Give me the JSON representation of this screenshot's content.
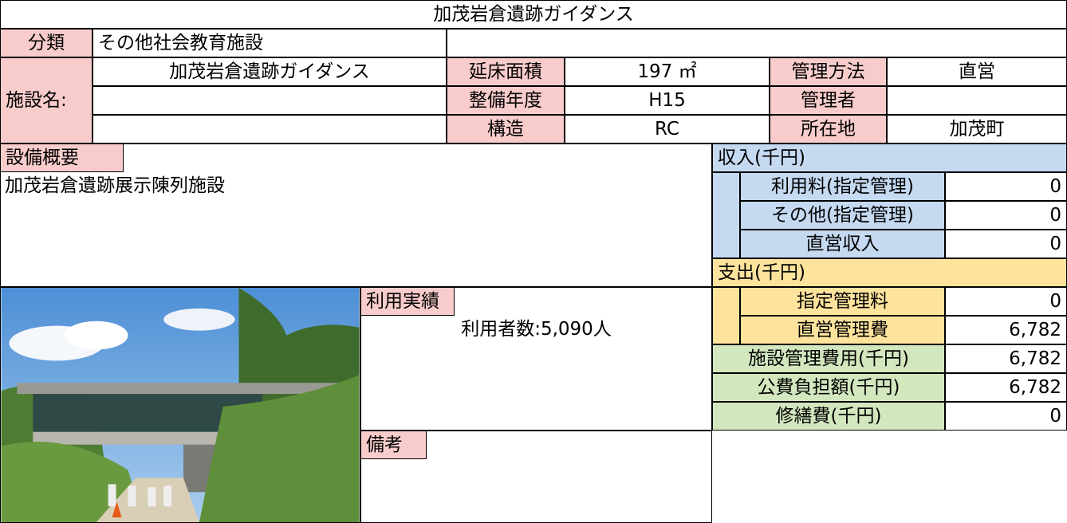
{
  "title": "加茂岩倉遺跡ガイダンス",
  "classification": {
    "label": "分類",
    "value": "その他社会教育施設"
  },
  "facility_name": {
    "label": "施設名:",
    "value": "加茂岩倉遺跡ガイダンス"
  },
  "specs": [
    {
      "label": "延床面積",
      "value": "197 ㎡"
    },
    {
      "label": "整備年度",
      "value": "H15"
    },
    {
      "label": "構造",
      "value": "RC"
    }
  ],
  "management": [
    {
      "label": "管理方法",
      "value": "直営"
    },
    {
      "label": "管理者"
    },
    {
      "label": "所在地",
      "value": "加茂町"
    }
  ],
  "equipment": {
    "label": "設備概要",
    "text": "加茂岩倉遺跡展示陳列施設"
  },
  "usage": {
    "label": "利用実績",
    "text": "利用者数:5,090人"
  },
  "remarks": {
    "label": "備考"
  },
  "income": {
    "label": "収入(千円)",
    "rows": [
      {
        "label": "利用料(指定管理)",
        "value": "0"
      },
      {
        "label": "その他(指定管理)",
        "value": "0"
      },
      {
        "label": "直営収入",
        "value": "0"
      }
    ]
  },
  "expenses": {
    "label": "支出(千円)",
    "rows": [
      {
        "label": "指定管理料",
        "value": "0"
      },
      {
        "label": "直営管理費",
        "value": "6,782"
      }
    ]
  },
  "totals": [
    {
      "label": "施設管理費用(千円)",
      "value": "6,782"
    },
    {
      "label": "公費負担額(千円)",
      "value": "6,782"
    },
    {
      "label": "修繕費(千円)",
      "value": "0"
    }
  ]
}
